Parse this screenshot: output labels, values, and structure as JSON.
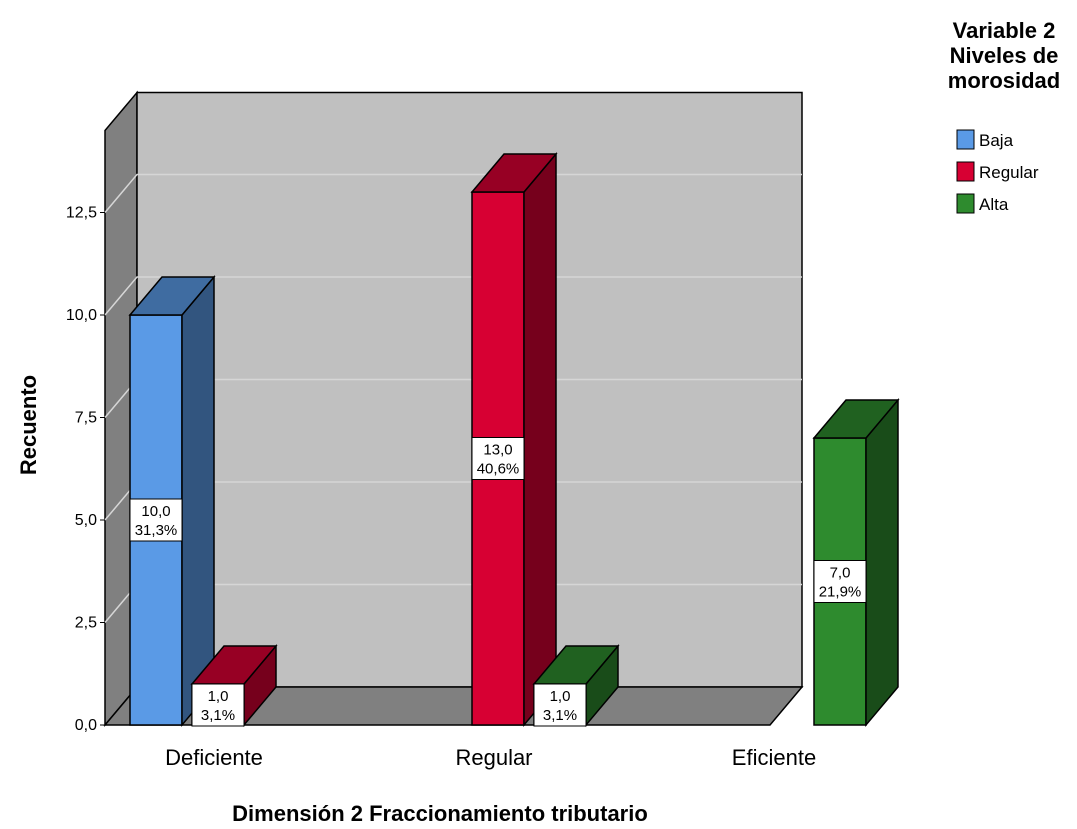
{
  "chart_data": {
    "type": "bar",
    "style": "3d-clustered",
    "categories": [
      "Deficiente",
      "Regular",
      "Eficiente"
    ],
    "series": [
      {
        "name": "Baja",
        "color": "#5a9ae6",
        "values": [
          10,
          0,
          0
        ],
        "labels": [
          [
            "10,0",
            "31,3%"
          ],
          null,
          null
        ]
      },
      {
        "name": "Regular",
        "color": "#d70033",
        "values": [
          1,
          13,
          0
        ],
        "labels": [
          [
            "1,0",
            "3,1%"
          ],
          [
            "13,0",
            "40,6%"
          ],
          null
        ]
      },
      {
        "name": "Alta",
        "color": "#2e8b2e",
        "values": [
          0,
          1,
          7
        ],
        "labels": [
          null,
          [
            "1,0",
            "3,1%"
          ],
          [
            "7,0",
            "21,9%"
          ]
        ]
      }
    ],
    "xlabel": "Dimensión 2 Fraccionamiento tributario",
    "ylabel": "Recuento",
    "ylim": [
      0,
      14.5
    ],
    "yticks": [
      "0,0",
      "2,5",
      "5,0",
      "7,5",
      "10,0",
      "12,5"
    ],
    "ytick_values": [
      0,
      2.5,
      5,
      7.5,
      10,
      12.5
    ],
    "grid": true,
    "legend": {
      "title_lines": [
        "Variable 2",
        "Niveles de",
        "morosidad"
      ],
      "placement": "top-right"
    }
  }
}
